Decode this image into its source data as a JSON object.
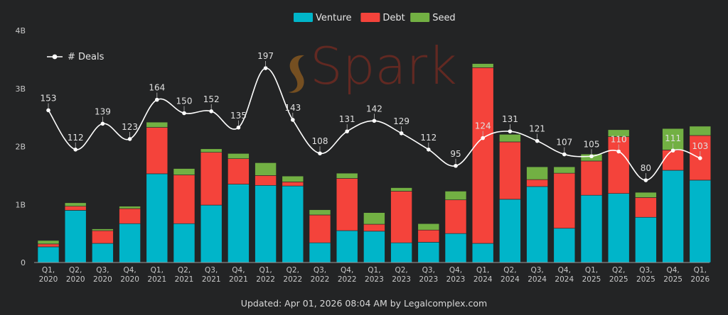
{
  "chart_data": {
    "type": "bar",
    "stacked": true,
    "categories": [
      "Q1, 2020",
      "Q2, 2020",
      "Q3, 2020",
      "Q4, 2020",
      "Q1, 2021",
      "Q2, 2021",
      "Q3, 2021",
      "Q4, 2021",
      "Q1, 2022",
      "Q2, 2022",
      "Q3, 2022",
      "Q4, 2022",
      "Q1, 2023",
      "Q2, 2023",
      "Q3, 2023",
      "Q4, 2023",
      "Q1, 2024",
      "Q2, 2024",
      "Q3, 2024",
      "Q4, 2024",
      "Q1, 2025",
      "Q2, 2025",
      "Q3, 2025",
      "Q4, 2025",
      "Q1, 2026"
    ],
    "series": [
      {
        "name": "Venture",
        "color": "#00b5c9",
        "values": [
          0.27,
          0.9,
          0.33,
          0.67,
          1.53,
          0.67,
          0.99,
          1.35,
          1.33,
          1.32,
          0.34,
          0.55,
          0.54,
          0.34,
          0.35,
          0.5,
          0.33,
          1.09,
          1.31,
          0.59,
          1.16,
          1.19,
          0.78,
          1.59,
          1.42
        ]
      },
      {
        "name": "Debt",
        "color": "#f4433b",
        "values": [
          0.05,
          0.07,
          0.22,
          0.26,
          0.8,
          0.84,
          0.91,
          0.44,
          0.17,
          0.07,
          0.48,
          0.9,
          0.12,
          0.89,
          0.21,
          0.58,
          3.03,
          0.99,
          0.12,
          0.95,
          0.59,
          0.98,
          0.34,
          0.35,
          0.77
        ]
      },
      {
        "name": "Seed",
        "color": "#72b043",
        "values": [
          0.06,
          0.06,
          0.03,
          0.04,
          0.09,
          0.11,
          0.06,
          0.09,
          0.22,
          0.1,
          0.09,
          0.09,
          0.2,
          0.06,
          0.11,
          0.15,
          0.07,
          0.13,
          0.22,
          0.11,
          0.12,
          0.12,
          0.09,
          0.37,
          0.16
        ]
      }
    ],
    "line_series": {
      "name": "# Deals",
      "color": "#ffffff",
      "values": [
        153,
        112,
        139,
        123,
        164,
        150,
        152,
        135,
        197,
        143,
        108,
        131,
        142,
        129,
        112,
        95,
        124,
        131,
        121,
        107,
        105,
        110,
        80,
        111,
        103
      ]
    },
    "yticks": [
      {
        "v": 0,
        "label": "0"
      },
      {
        "v": 1,
        "label": "1B"
      },
      {
        "v": 2,
        "label": "2B"
      },
      {
        "v": 3,
        "label": "3B"
      },
      {
        "v": 4,
        "label": "4B"
      }
    ],
    "ylim": [
      0,
      4
    ],
    "units": "billions USD",
    "legend": {
      "position": "top-center",
      "items": [
        "Venture",
        "Debt",
        "Seed"
      ]
    },
    "line_legend": {
      "position": "top-left",
      "label": "# Deals"
    },
    "title": "",
    "xlabel": "",
    "ylabel": "",
    "grid": false
  },
  "watermark": "Spark",
  "footer": "Updated: Apr 01, 2026 08:04 AM by Legalcomplex.com"
}
